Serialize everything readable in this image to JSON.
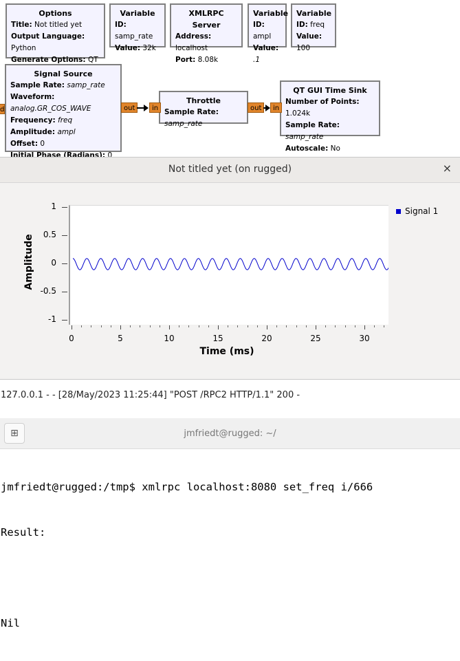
{
  "flowgraph": {
    "options": {
      "title": "Options",
      "rows": [
        {
          "k": "Title:",
          "v": "Not titled yet"
        },
        {
          "k": "Output Language:",
          "v": "Python"
        },
        {
          "k": "Generate Options:",
          "v": "QT GUI"
        }
      ]
    },
    "var_samp_rate": {
      "title": "Variable",
      "rows": [
        {
          "k": "ID:",
          "v": "samp_rate"
        },
        {
          "k": "Value:",
          "v": "32k"
        }
      ]
    },
    "xmlrpc": {
      "title": "XMLRPC Server",
      "rows": [
        {
          "k": "Address:",
          "v": "localhost"
        },
        {
          "k": "Port:",
          "v": "8.08k"
        }
      ]
    },
    "var_ampl": {
      "title": "Variable",
      "rows": [
        {
          "k": "ID:",
          "v": "ampl"
        },
        {
          "k": "Value:",
          "v": ".1"
        }
      ]
    },
    "var_freq": {
      "title": "Variable",
      "rows": [
        {
          "k": "ID:",
          "v": "freq"
        },
        {
          "k": "Value:",
          "v": "100"
        }
      ]
    },
    "signal_source": {
      "title": "Signal Source",
      "rows": [
        {
          "k": "Sample Rate:",
          "v": "samp_rate"
        },
        {
          "k": "Waveform:",
          "v": "analog.GR_COS_WAVE"
        },
        {
          "k": "Frequency:",
          "v": "freq"
        },
        {
          "k": "Amplitude:",
          "v": "ampl"
        },
        {
          "k": "Offset:",
          "v": "0"
        },
        {
          "k": "Initial Phase (Radians):",
          "v": "0"
        }
      ]
    },
    "throttle": {
      "title": "Throttle",
      "rows": [
        {
          "k": "Sample Rate:",
          "v": "samp_rate"
        }
      ]
    },
    "time_sink": {
      "title": "QT GUI Time Sink",
      "rows": [
        {
          "k": "Number of Points:",
          "v": "1.024k"
        },
        {
          "k": "Sample Rate:",
          "v": "samp_rate"
        },
        {
          "k": "Autoscale:",
          "v": "No"
        }
      ]
    },
    "ports": {
      "out": "out",
      "in": "in",
      "d": "d"
    }
  },
  "qt_window": {
    "title": "Not titled yet (on rugged)",
    "close_glyph": "×"
  },
  "chart_data": {
    "type": "line",
    "title": "",
    "xlabel": "Time (ms)",
    "ylabel": "Amplitude",
    "xlim": [
      0,
      32
    ],
    "ylim": [
      -1,
      1
    ],
    "x_ticks": [
      "0",
      "5",
      "10",
      "15",
      "20",
      "25",
      "30"
    ],
    "y_ticks": [
      "1",
      "0.5",
      "0",
      "-0.5",
      "-1"
    ],
    "legend_position": "top-right",
    "series": [
      {
        "name": "Signal 1",
        "color": "#0000cc",
        "waveform": "cosine",
        "amplitude": 0.1,
        "frequency_hz": 700,
        "x_start_ms": 0,
        "x_end_ms": 32.5
      }
    ]
  },
  "server_log": "127.0.0.1 - - [28/May/2023 11:25:44] \"POST /RPC2 HTTP/1.1\" 200 -",
  "terminal": {
    "title": "jmfriedt@rugged: ~/",
    "new_tab_icon": "⊞",
    "lines": [
      "jmfriedt@rugged:/tmp$ xmlrpc localhost:8080 set_freq i/666",
      "Result:",
      "",
      "Nil"
    ]
  }
}
